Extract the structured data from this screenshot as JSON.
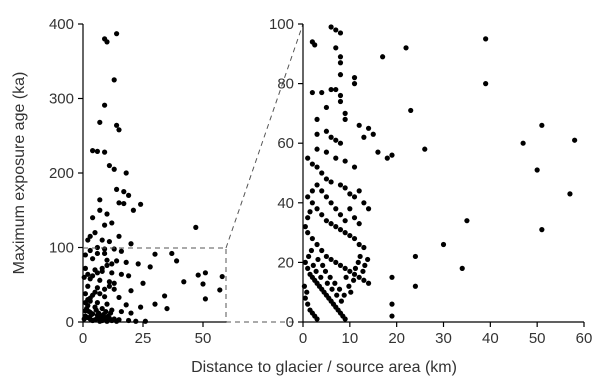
{
  "chart_data": [
    {
      "type": "scatter",
      "panel": "full-range",
      "xlim": [
        0,
        60
      ],
      "ylim": [
        0,
        400
      ],
      "x_ticks": [
        "0",
        "25",
        "50"
      ],
      "y_ticks": [
        "0",
        "100",
        "200",
        "300",
        "400"
      ],
      "ylabel": "Maximum exposure age (ka)",
      "xlabel": "Distance to glacier / source area (km)",
      "grid": false,
      "points": [
        [
          9,
          380
        ],
        [
          10,
          376
        ],
        [
          14,
          387
        ],
        [
          13,
          325
        ],
        [
          9,
          291
        ],
        [
          7,
          268
        ],
        [
          14,
          264
        ],
        [
          15,
          258
        ],
        [
          4,
          230
        ],
        [
          6,
          229
        ],
        [
          9,
          228
        ],
        [
          11,
          210
        ],
        [
          13,
          205
        ],
        [
          18,
          200
        ],
        [
          14,
          178
        ],
        [
          17,
          175
        ],
        [
          19,
          170
        ],
        [
          7,
          164
        ],
        [
          15,
          160
        ],
        [
          17,
          159
        ],
        [
          24,
          158
        ],
        [
          21,
          150
        ],
        [
          10,
          145
        ],
        [
          12,
          133
        ],
        [
          9,
          130
        ],
        [
          5,
          120
        ],
        [
          3,
          115
        ],
        [
          15,
          115
        ],
        [
          2,
          110
        ],
        [
          8,
          110
        ],
        [
          11,
          108
        ],
        [
          20,
          105
        ],
        [
          6,
          100
        ],
        [
          13,
          98
        ],
        [
          16,
          95
        ],
        [
          9,
          92
        ],
        [
          30,
          91
        ],
        [
          37,
          92
        ],
        [
          47,
          127
        ],
        [
          4,
          85
        ],
        [
          10,
          83
        ],
        [
          14,
          82
        ],
        [
          18,
          80
        ],
        [
          23,
          78
        ],
        [
          28,
          74
        ],
        [
          39,
          82
        ],
        [
          1,
          72
        ],
        [
          5,
          70
        ],
        [
          8,
          68
        ],
        [
          12,
          66
        ],
        [
          16,
          64
        ],
        [
          19,
          62
        ],
        [
          48,
          63
        ],
        [
          51,
          66
        ],
        [
          58,
          61
        ],
        [
          3,
          58
        ],
        [
          7,
          56
        ],
        [
          11,
          54
        ],
        [
          25,
          52
        ],
        [
          42,
          54
        ],
        [
          50,
          51
        ],
        [
          2,
          48
        ],
        [
          6,
          46
        ],
        [
          13,
          44
        ],
        [
          20,
          42
        ],
        [
          1,
          38
        ],
        [
          4,
          36
        ],
        [
          9,
          34
        ],
        [
          15,
          33
        ],
        [
          34,
          35
        ],
        [
          51,
          31
        ],
        [
          57,
          43
        ],
        [
          3,
          28
        ],
        [
          6,
          26
        ],
        [
          10,
          24
        ],
        [
          18,
          23
        ],
        [
          30,
          24
        ],
        [
          24,
          20
        ],
        [
          35,
          18
        ],
        [
          2,
          22
        ],
        [
          5,
          20
        ],
        [
          8,
          18
        ],
        [
          12,
          16
        ],
        [
          16,
          14
        ],
        [
          20,
          12
        ],
        [
          1,
          15
        ],
        [
          3,
          13
        ],
        [
          4,
          11
        ],
        [
          6,
          9
        ],
        [
          7,
          7
        ],
        [
          9,
          6
        ],
        [
          11,
          5
        ],
        [
          13,
          4
        ],
        [
          15,
          3
        ],
        [
          19,
          2
        ],
        [
          22,
          1
        ],
        [
          26,
          1
        ],
        [
          0.5,
          4
        ],
        [
          1,
          8
        ],
        [
          2,
          6
        ],
        [
          3,
          4
        ],
        [
          4,
          2
        ],
        [
          5,
          3
        ],
        [
          6,
          5
        ],
        [
          7,
          1
        ],
        [
          8,
          2
        ],
        [
          9,
          3
        ],
        [
          10,
          1
        ],
        [
          12,
          2
        ],
        [
          14,
          1
        ],
        [
          1.5,
          18
        ],
        [
          2.5,
          14
        ],
        [
          3.5,
          10
        ],
        [
          5.5,
          16
        ],
        [
          6.5,
          12
        ],
        [
          7.5,
          8
        ],
        [
          8.5,
          10
        ],
        [
          9.5,
          14
        ],
        [
          10.5,
          8
        ],
        [
          11.5,
          12
        ],
        [
          1,
          26
        ],
        [
          2,
          30
        ],
        [
          3,
          32
        ],
        [
          5,
          40
        ],
        [
          7,
          38
        ],
        [
          9,
          44
        ],
        [
          11,
          48
        ],
        [
          13,
          52
        ],
        [
          0.5,
          60
        ],
        [
          2,
          64
        ],
        [
          4,
          62
        ],
        [
          6,
          66
        ],
        [
          8,
          72
        ],
        [
          10,
          76
        ],
        [
          12,
          78
        ],
        [
          1,
          90
        ],
        [
          3,
          96
        ],
        [
          6,
          92
        ],
        [
          9,
          98
        ],
        [
          4,
          140
        ],
        [
          7,
          150
        ]
      ]
    },
    {
      "type": "scatter",
      "panel": "zoom",
      "xlim": [
        0,
        60
      ],
      "ylim": [
        0,
        100
      ],
      "x_ticks": [
        "0",
        "10",
        "20",
        "30",
        "40",
        "50",
        "60"
      ],
      "y_ticks": [
        "0",
        "20",
        "40",
        "60",
        "80",
        "100"
      ],
      "grid": false,
      "points": [
        [
          2,
          94
        ],
        [
          2.5,
          93
        ],
        [
          6,
          99
        ],
        [
          7,
          98
        ],
        [
          8,
          97
        ],
        [
          7,
          92
        ],
        [
          8,
          89
        ],
        [
          8,
          87
        ],
        [
          8,
          83
        ],
        [
          11,
          82
        ],
        [
          11,
          80
        ],
        [
          2,
          77
        ],
        [
          4,
          77
        ],
        [
          6,
          78
        ],
        [
          7,
          78
        ],
        [
          8,
          76
        ],
        [
          8,
          74
        ],
        [
          5,
          72
        ],
        [
          9,
          70
        ],
        [
          9,
          68
        ],
        [
          3,
          68
        ],
        [
          3,
          63
        ],
        [
          5,
          64
        ],
        [
          6,
          62
        ],
        [
          7,
          61
        ],
        [
          8,
          60
        ],
        [
          12,
          66
        ],
        [
          13,
          62
        ],
        [
          14,
          65
        ],
        [
          15,
          63
        ],
        [
          16,
          57
        ],
        [
          18,
          55
        ],
        [
          17,
          89
        ],
        [
          19,
          56
        ],
        [
          22,
          92
        ],
        [
          23,
          71
        ],
        [
          26,
          58
        ],
        [
          39,
          95
        ],
        [
          39,
          80
        ],
        [
          47,
          60
        ],
        [
          50,
          51
        ],
        [
          51,
          66
        ],
        [
          58,
          61
        ],
        [
          57,
          43
        ],
        [
          51,
          31
        ],
        [
          35,
          34
        ],
        [
          30,
          26
        ],
        [
          34,
          18
        ],
        [
          24,
          22
        ],
        [
          24,
          12
        ],
        [
          19,
          15
        ],
        [
          19,
          6
        ],
        [
          19,
          2
        ],
        [
          1,
          55
        ],
        [
          2,
          53
        ],
        [
          3,
          52
        ],
        [
          4,
          50
        ],
        [
          5,
          48
        ],
        [
          6,
          47
        ],
        [
          8,
          46
        ],
        [
          9,
          45
        ],
        [
          10,
          43
        ],
        [
          11,
          42
        ],
        [
          12,
          44
        ],
        [
          13,
          40
        ],
        [
          14,
          38
        ],
        [
          1,
          42
        ],
        [
          2,
          40
        ],
        [
          3,
          38
        ],
        [
          4,
          36
        ],
        [
          5,
          34
        ],
        [
          6,
          33
        ],
        [
          7,
          32
        ],
        [
          8,
          31
        ],
        [
          9,
          30
        ],
        [
          10,
          29
        ],
        [
          11,
          28
        ],
        [
          12,
          26
        ],
        [
          13,
          25
        ],
        [
          1,
          30
        ],
        [
          2,
          28
        ],
        [
          3,
          26
        ],
        [
          4,
          24
        ],
        [
          5,
          22
        ],
        [
          6,
          21
        ],
        [
          7,
          20
        ],
        [
          8,
          19
        ],
        [
          9,
          18
        ],
        [
          10,
          17
        ],
        [
          11,
          16
        ],
        [
          12,
          15
        ],
        [
          13,
          14
        ],
        [
          14,
          13
        ],
        [
          0.5,
          20
        ],
        [
          1,
          18
        ],
        [
          1.5,
          16
        ],
        [
          2,
          15
        ],
        [
          2.5,
          14
        ],
        [
          3,
          13
        ],
        [
          3.5,
          12
        ],
        [
          4,
          11
        ],
        [
          4.5,
          10
        ],
        [
          5,
          9
        ],
        [
          5.5,
          8
        ],
        [
          6,
          7
        ],
        [
          6.5,
          6
        ],
        [
          7,
          5
        ],
        [
          7.5,
          4
        ],
        [
          8,
          3
        ],
        [
          8.5,
          2
        ],
        [
          9,
          1
        ],
        [
          0.5,
          8
        ],
        [
          1,
          6
        ],
        [
          1.5,
          4
        ],
        [
          2,
          3
        ],
        [
          2.5,
          2
        ],
        [
          3,
          1
        ],
        [
          0.3,
          12
        ],
        [
          0.8,
          10
        ],
        [
          1.2,
          22
        ],
        [
          1.8,
          24
        ],
        [
          2.2,
          19
        ],
        [
          2.8,
          17
        ],
        [
          3.2,
          21
        ],
        [
          3.8,
          15
        ],
        [
          4.2,
          19
        ],
        [
          4.8,
          17
        ],
        [
          5.2,
          13
        ],
        [
          5.8,
          15
        ],
        [
          6.2,
          11
        ],
        [
          6.8,
          13
        ],
        [
          7.2,
          9
        ],
        [
          7.8,
          11
        ],
        [
          8.2,
          7
        ],
        [
          8.8,
          9
        ],
        [
          9.2,
          15
        ],
        [
          9.8,
          12
        ],
        [
          10.2,
          10
        ],
        [
          10.8,
          14
        ],
        [
          11.2,
          18
        ],
        [
          11.8,
          20
        ],
        [
          12.2,
          22
        ],
        [
          12.8,
          17
        ],
        [
          13.2,
          19
        ],
        [
          13.8,
          21
        ],
        [
          0.5,
          32
        ],
        [
          1,
          35
        ],
        [
          1.5,
          37
        ],
        [
          2,
          44
        ],
        [
          3,
          46
        ],
        [
          4,
          44
        ],
        [
          5,
          42
        ],
        [
          6,
          40
        ],
        [
          7,
          38
        ],
        [
          8,
          36
        ],
        [
          9,
          34
        ],
        [
          10,
          38
        ],
        [
          11,
          35
        ],
        [
          12,
          33
        ],
        [
          3,
          58
        ],
        [
          5,
          57
        ],
        [
          7,
          55
        ],
        [
          9,
          54
        ],
        [
          11,
          52
        ]
      ]
    }
  ]
}
